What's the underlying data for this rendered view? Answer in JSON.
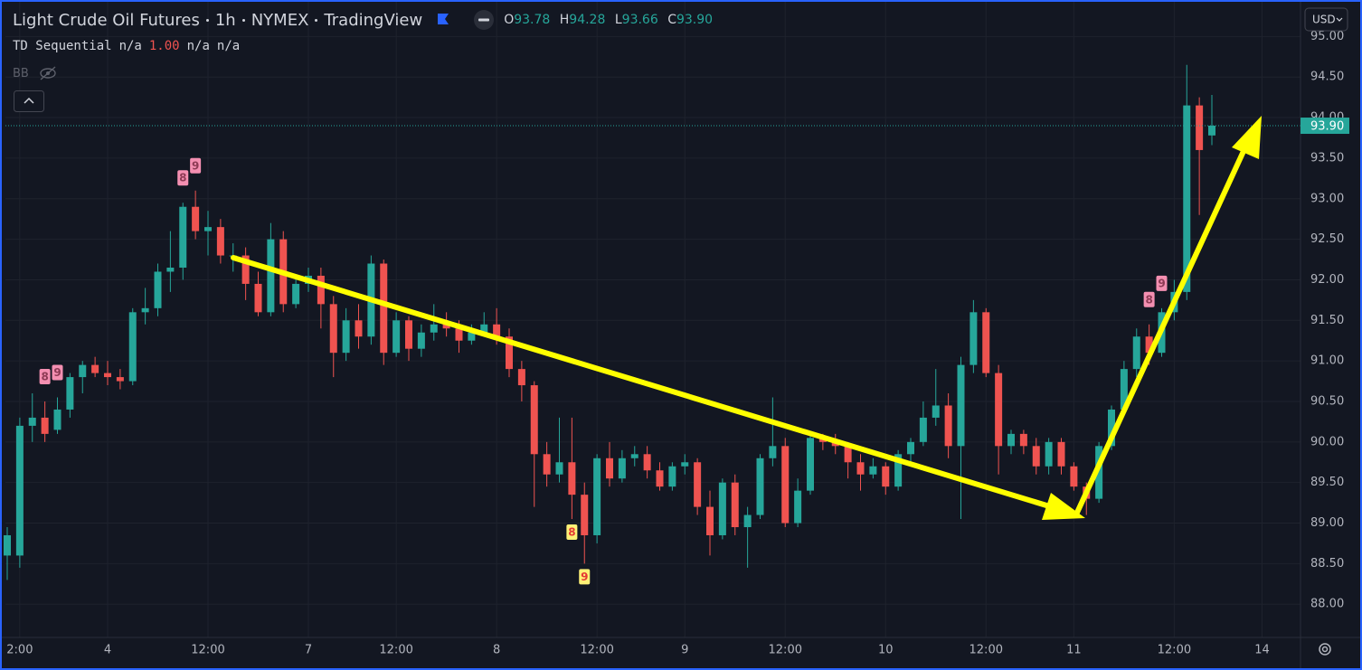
{
  "chart_data": {
    "type": "candlestick",
    "title": "Light Crude Oil Futures",
    "interval": "1h",
    "exchange": "NYMEX",
    "source": "TradingView",
    "currency": "USD",
    "ohlc_keys": [
      "O",
      "H",
      "L",
      "C"
    ],
    "indicators": [
      {
        "name": "TD Sequential",
        "values": [
          "n/a",
          {
            "value": 1,
            "label": "1.00"
          },
          "n/a",
          "n/a"
        ]
      },
      {
        "name": "BB"
      }
    ],
    "categories": [
      null,
      "2:00",
      null,
      null,
      null,
      null,
      null,
      null,
      "4",
      null,
      null,
      null,
      null,
      null,
      null,
      null,
      "12:00",
      null,
      null,
      null,
      null,
      null,
      null,
      null,
      "7",
      null,
      null,
      null,
      null,
      null,
      null,
      "12:00",
      null,
      null,
      null,
      null,
      null,
      null,
      null,
      "8",
      null,
      null,
      null,
      null,
      null,
      null,
      null,
      "12:00",
      null,
      null,
      null,
      null,
      null,
      null,
      "9",
      null,
      null,
      null,
      null,
      null,
      null,
      null,
      "12:00",
      null,
      null,
      null,
      null,
      null,
      null,
      null,
      "10",
      null,
      null,
      null,
      null,
      null,
      null,
      null,
      "12:00",
      null,
      null,
      null,
      null,
      null,
      null,
      "11",
      null,
      null,
      null,
      null,
      null,
      null,
      null,
      "12:00",
      null,
      null,
      null,
      null,
      null,
      null,
      "14"
    ],
    "open": [
      88.6,
      88.6,
      90.2,
      90.3,
      90.15,
      90.4,
      90.8,
      90.95,
      90.85,
      90.8,
      90.75,
      91.6,
      91.65,
      92.1,
      92.15,
      92.9,
      92.6,
      92.65,
      92.3,
      92.3,
      91.95,
      91.6,
      92.5,
      91.7,
      91.95,
      92.05,
      91.7,
      91.1,
      91.5,
      91.3,
      92.2,
      91.1,
      91.5,
      91.15,
      91.35,
      91.45,
      91.4,
      91.25,
      91.35,
      91.45,
      91.3,
      90.9,
      90.7,
      89.85,
      89.6,
      89.75,
      89.35,
      88.85,
      89.8,
      89.55,
      89.8,
      89.85,
      89.65,
      89.45,
      89.7,
      89.75,
      89.2,
      88.85,
      89.5,
      88.95,
      89.1,
      89.8,
      89.95,
      89.0,
      89.4,
      90.05,
      90.0,
      89.95,
      89.75,
      89.6,
      89.7,
      89.45,
      89.85,
      90.0,
      90.3,
      90.45,
      89.95,
      90.95,
      91.6,
      90.85,
      89.95,
      90.1,
      89.95,
      89.7,
      90.0,
      89.7,
      89.45,
      89.3,
      89.95,
      90.4,
      90.9,
      91.3,
      91.1,
      91.6,
      91.85,
      94.15,
      93.78,
      null,
      null,
      null,
      null
    ],
    "high": [
      88.95,
      90.3,
      90.6,
      90.5,
      90.55,
      90.85,
      91.0,
      91.05,
      91.0,
      90.9,
      91.65,
      91.9,
      92.2,
      92.6,
      92.95,
      93.1,
      92.85,
      92.75,
      92.45,
      92.4,
      92.1,
      92.7,
      92.6,
      92.05,
      92.15,
      92.15,
      91.8,
      91.65,
      91.7,
      92.3,
      92.25,
      91.6,
      91.55,
      91.45,
      91.7,
      91.6,
      91.5,
      91.45,
      91.6,
      91.65,
      91.4,
      91.0,
      90.75,
      90.0,
      90.3,
      90.3,
      89.5,
      89.85,
      90.0,
      89.9,
      89.95,
      89.95,
      89.75,
      89.75,
      89.85,
      89.8,
      89.4,
      89.55,
      89.6,
      89.2,
      89.85,
      90.55,
      90.05,
      89.55,
      90.1,
      90.1,
      90.1,
      90.0,
      89.85,
      89.8,
      89.75,
      89.9,
      90.05,
      90.5,
      90.9,
      90.6,
      91.05,
      91.75,
      91.65,
      90.95,
      90.15,
      90.15,
      90.05,
      90.05,
      90.05,
      89.75,
      89.5,
      90.0,
      90.45,
      91.0,
      91.4,
      91.45,
      91.65,
      92.0,
      94.65,
      94.25,
      94.28,
      null,
      null,
      null,
      null
    ],
    "low": [
      88.3,
      88.45,
      90.0,
      90.0,
      90.1,
      90.3,
      90.6,
      90.8,
      90.7,
      90.65,
      90.7,
      91.45,
      91.55,
      91.85,
      92.0,
      92.5,
      92.3,
      92.2,
      92.1,
      91.75,
      91.55,
      91.55,
      91.6,
      91.65,
      91.85,
      91.4,
      90.8,
      91.0,
      91.15,
      91.2,
      90.95,
      91.05,
      91.0,
      91.05,
      91.25,
      91.3,
      91.1,
      91.2,
      91.3,
      91.2,
      90.8,
      90.5,
      89.2,
      89.45,
      89.5,
      89.05,
      88.5,
      88.75,
      89.45,
      89.5,
      89.7,
      89.55,
      89.4,
      89.4,
      89.6,
      89.1,
      88.6,
      88.8,
      88.85,
      88.45,
      89.05,
      89.7,
      88.95,
      88.95,
      89.35,
      89.9,
      89.85,
      89.55,
      89.4,
      89.55,
      89.35,
      89.4,
      89.7,
      89.95,
      90.2,
      89.8,
      89.05,
      90.85,
      90.8,
      89.6,
      89.85,
      89.85,
      89.6,
      89.6,
      89.6,
      89.4,
      89.1,
      89.25,
      89.9,
      90.35,
      90.8,
      90.95,
      91.05,
      91.5,
      91.75,
      92.8,
      93.66,
      null,
      null,
      null,
      null
    ],
    "close": [
      88.85,
      90.2,
      90.3,
      90.1,
      90.4,
      90.8,
      90.95,
      90.85,
      90.8,
      90.75,
      91.6,
      91.65,
      92.1,
      92.15,
      92.9,
      92.6,
      92.65,
      92.3,
      92.3,
      91.95,
      91.6,
      92.5,
      91.7,
      91.95,
      92.05,
      91.7,
      91.1,
      91.5,
      91.3,
      92.2,
      91.1,
      91.5,
      91.15,
      91.35,
      91.45,
      91.4,
      91.25,
      91.35,
      91.45,
      91.3,
      90.9,
      90.7,
      89.85,
      89.6,
      89.75,
      89.35,
      88.85,
      89.8,
      89.55,
      89.8,
      89.85,
      89.65,
      89.45,
      89.7,
      89.75,
      89.2,
      88.85,
      89.5,
      88.95,
      89.1,
      89.8,
      89.95,
      89.0,
      89.4,
      90.05,
      90.0,
      89.95,
      89.75,
      89.6,
      89.7,
      89.45,
      89.85,
      90.0,
      90.3,
      90.45,
      89.95,
      90.95,
      91.6,
      90.85,
      89.95,
      90.1,
      89.95,
      89.7,
      90.0,
      89.7,
      89.45,
      89.3,
      89.95,
      90.4,
      90.9,
      91.3,
      91.1,
      91.6,
      91.85,
      94.15,
      93.6,
      93.9,
      null,
      null,
      null,
      null
    ],
    "td_sell": [
      null,
      null,
      null,
      "8",
      "9",
      null,
      null,
      null,
      null,
      null,
      null,
      null,
      null,
      null,
      "8",
      "9",
      null,
      null,
      null,
      null,
      null,
      null,
      null,
      null,
      null,
      null,
      null,
      null,
      null,
      null,
      null,
      null,
      null,
      null,
      null,
      null,
      null,
      null,
      null,
      null,
      null,
      null,
      null,
      null,
      null,
      null,
      null,
      null,
      null,
      null,
      null,
      null,
      null,
      null,
      null,
      null,
      null,
      null,
      null,
      null,
      null,
      null,
      null,
      null,
      null,
      null,
      null,
      null,
      null,
      null,
      null,
      null,
      null,
      null,
      null,
      null,
      null,
      null,
      null,
      null,
      null,
      null,
      null,
      null,
      null,
      null,
      null,
      null,
      null,
      null,
      null,
      "8",
      "9",
      null,
      null,
      null,
      null,
      null,
      null,
      null,
      null
    ],
    "td_buy": [
      null,
      null,
      null,
      null,
      null,
      null,
      null,
      null,
      null,
      null,
      null,
      null,
      null,
      null,
      null,
      null,
      null,
      null,
      null,
      null,
      null,
      null,
      null,
      null,
      null,
      null,
      null,
      null,
      null,
      null,
      null,
      null,
      null,
      null,
      null,
      null,
      null,
      null,
      null,
      null,
      null,
      null,
      null,
      null,
      null,
      "8",
      "9",
      null,
      null,
      null,
      null,
      null,
      null,
      null,
      null,
      null,
      null,
      null,
      null,
      null,
      null,
      null,
      null,
      null,
      null,
      null,
      null,
      null,
      null,
      null,
      null,
      null,
      null,
      null,
      null,
      null,
      null,
      null,
      null,
      null,
      null,
      null,
      null,
      null,
      null,
      null,
      null,
      null,
      null,
      null,
      null,
      null,
      null,
      null,
      null,
      null,
      null,
      null,
      null,
      null,
      null
    ],
    "up_color": "#26a69a",
    "down_color": "#ef5350",
    "last_price": {
      "value": 93.9,
      "label": "93.90"
    },
    "ylim": [
      87.59,
      95.45
    ],
    "yticks": [
      {
        "value": 88,
        "label": "88.00"
      },
      {
        "value": 88.5,
        "label": "88.50"
      },
      {
        "value": 89,
        "label": "89.00"
      },
      {
        "value": 89.5,
        "label": "89.50"
      },
      {
        "value": 90,
        "label": "90.00"
      },
      {
        "value": 90.5,
        "label": "90.50"
      },
      {
        "value": 91,
        "label": "91.00"
      },
      {
        "value": 91.5,
        "label": "91.50"
      },
      {
        "value": 92,
        "label": "92.00"
      },
      {
        "value": 92.5,
        "label": "92.50"
      },
      {
        "value": 93,
        "label": "93.00"
      },
      {
        "value": 93.5,
        "label": "93.50"
      },
      {
        "value": 94,
        "label": "94.00"
      },
      {
        "value": 94.5,
        "label": "94.50"
      },
      {
        "value": 95,
        "label": "95.00"
      }
    ],
    "grid": true
  }
}
